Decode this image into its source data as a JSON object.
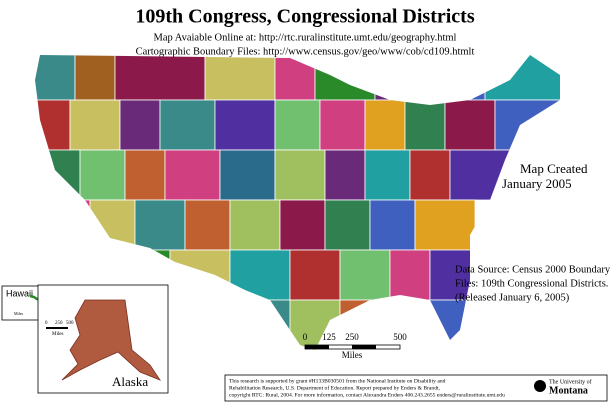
{
  "header": {
    "title": "109th Congress, Congressional Districts",
    "lines": [
      "Map Avaiable Online at: http://rtc.ruralinstitute.umt.edu/geography.html",
      "Cartographic Boundary Files: http://www.census.gov/geo/www/cob/cd109.htmlt"
    ]
  },
  "annotations": {
    "created": [
      "Map Created",
      "January 2005"
    ],
    "source": [
      "Data Source: Census 2000 Boundary",
      "Files: 109th Congressional Districts.",
      "(Released January 6, 2005)"
    ]
  },
  "scale": {
    "labels": [
      "0",
      "125",
      "250",
      "500"
    ],
    "unit": "Miles"
  },
  "hawaii": {
    "label": "Hawaii",
    "unit": "Miles"
  },
  "alaska": {
    "label": "Alaska",
    "labels": [
      "0",
      "250",
      "500"
    ],
    "unit": "Miles"
  },
  "footer": {
    "lines": [
      "This research is supported by grant #H133B030501 from the National Institute on Disability and",
      "Rehabilitation Research, U.S. Department of Education. Report prepared by Enders & Brandt,",
      "copyright RTC: Rural, 2004. For more information, contact Alexandra Enders 406.243.2655 enders@ruralinstitute.umt.edu"
    ]
  },
  "logo": {
    "line1": "The University of",
    "line2": "Montana"
  }
}
